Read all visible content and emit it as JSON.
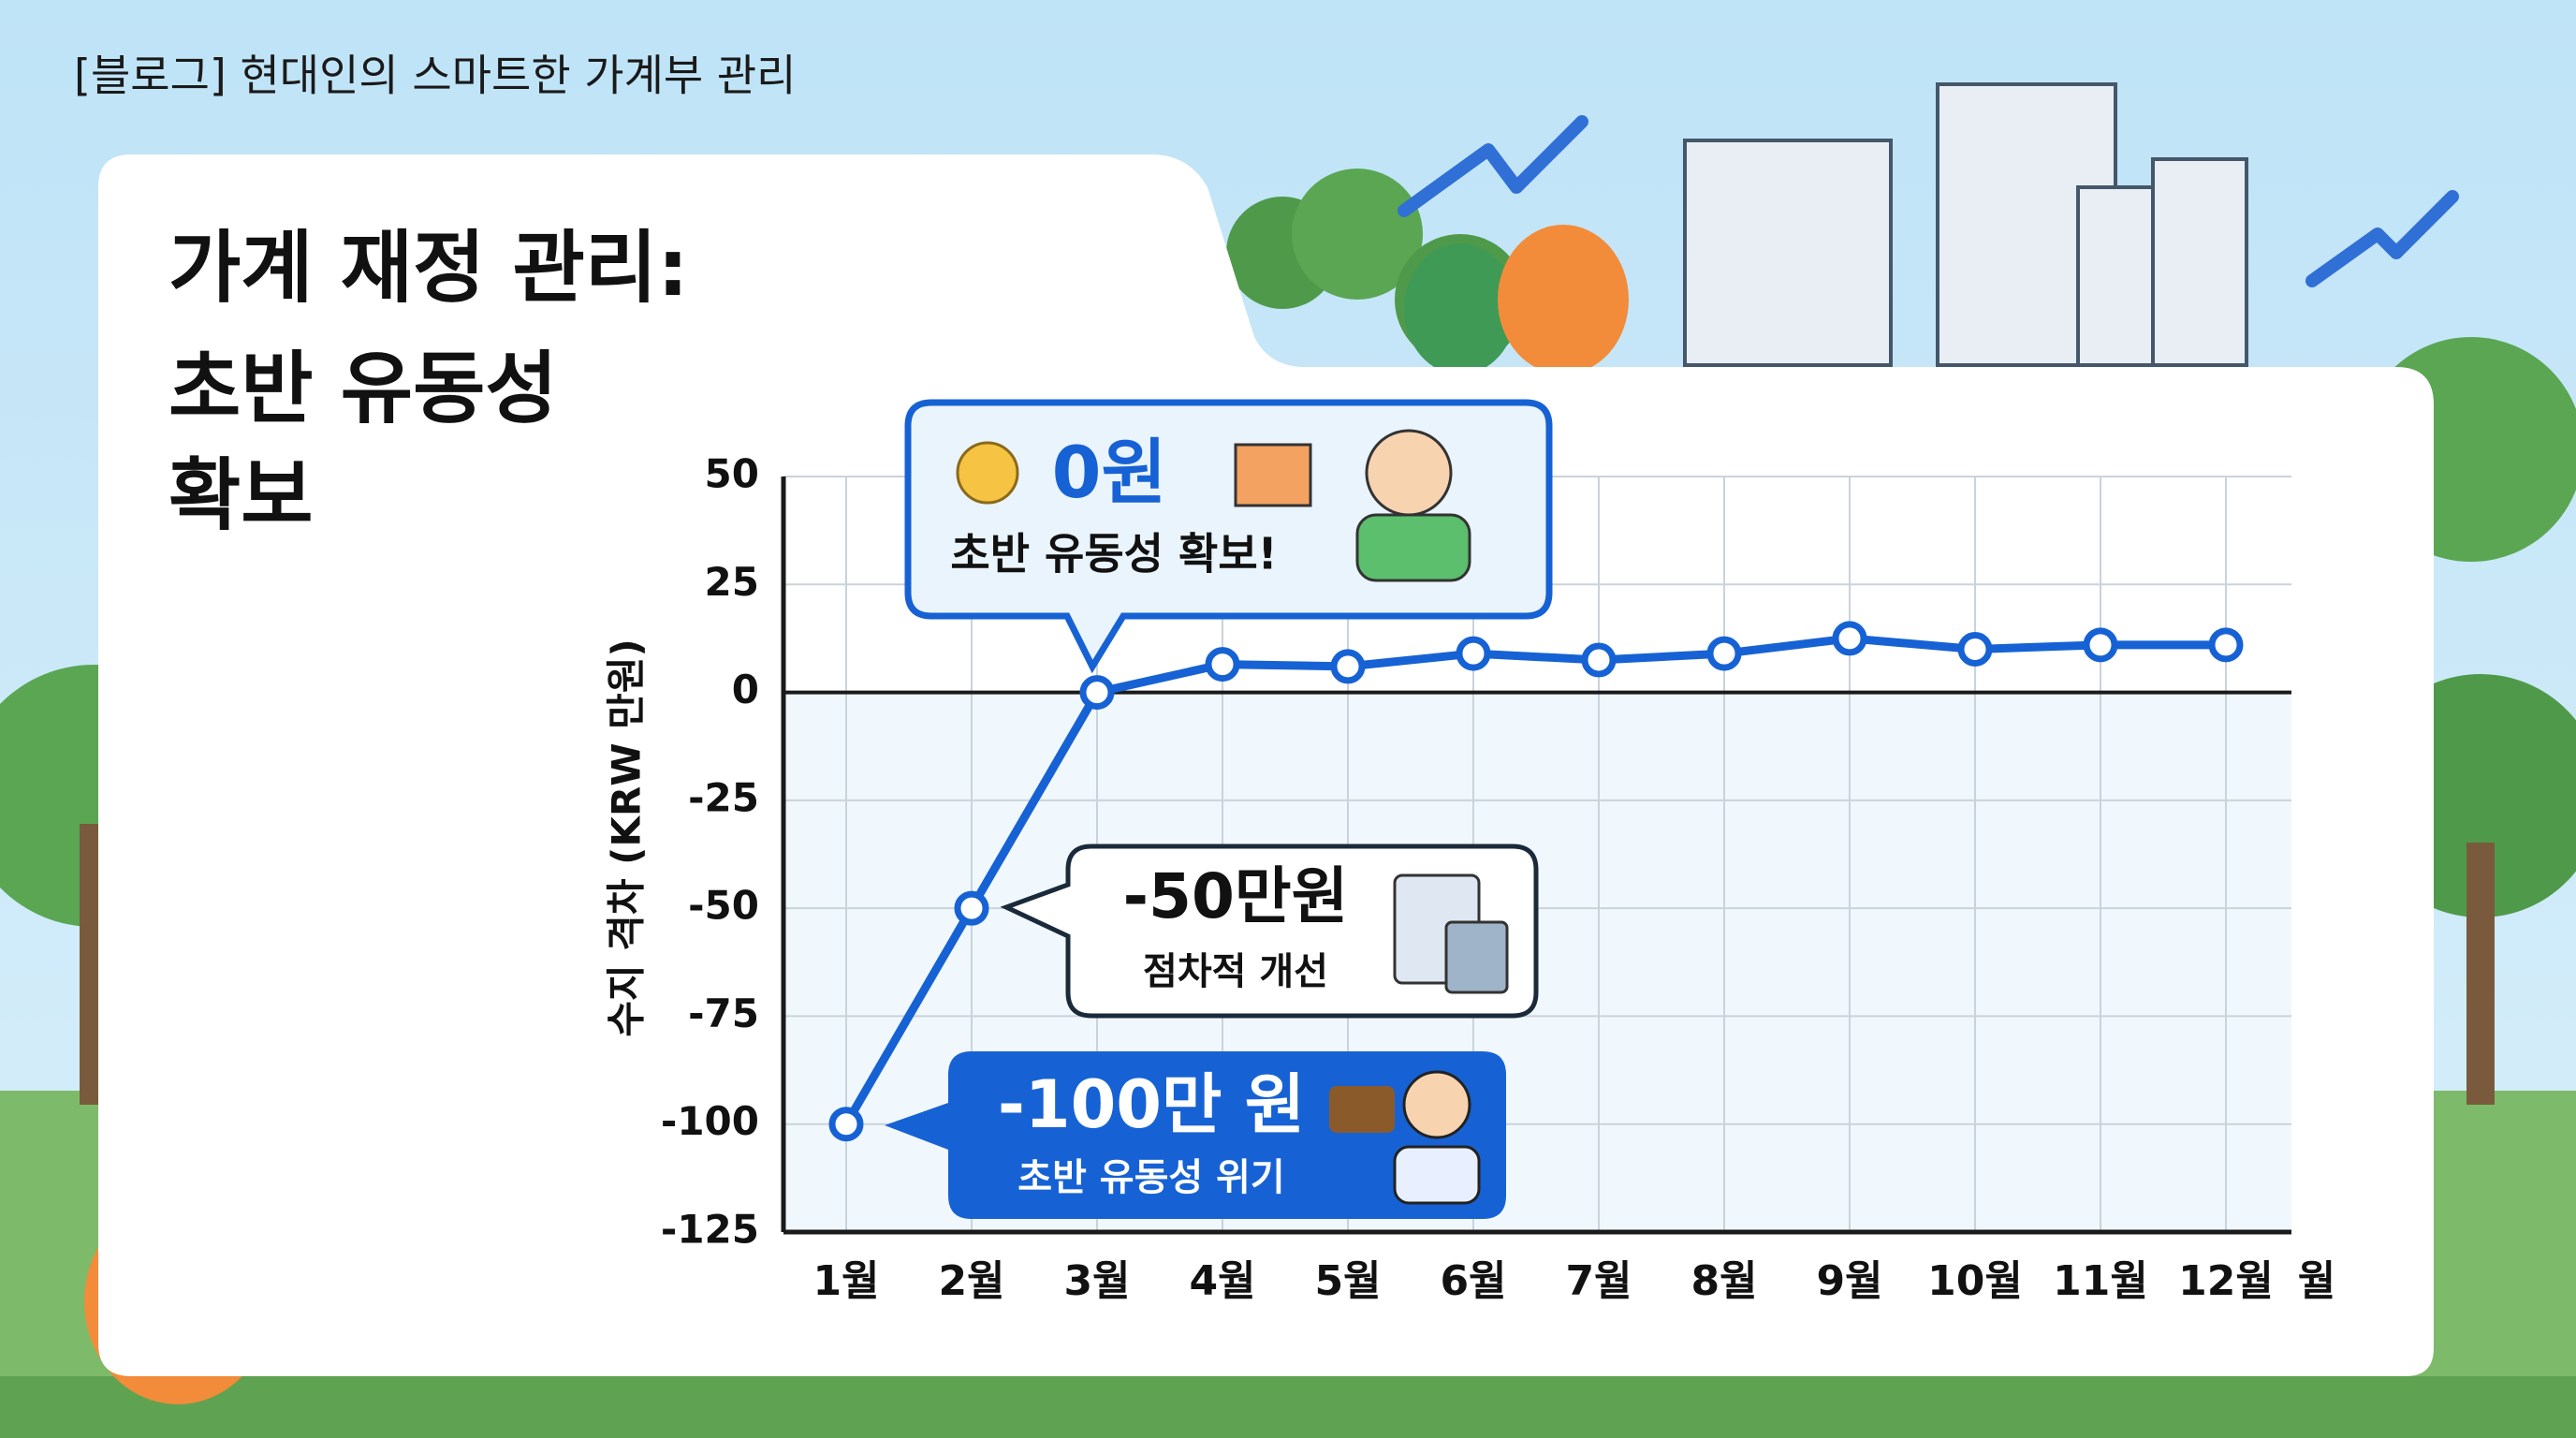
{
  "header": "[블로그] 현대인의 스마트한 가계부 관리",
  "chart_data": {
    "type": "line",
    "title": [
      "가계 재정 관리:",
      "초반 유동성",
      "확보"
    ],
    "y_label": "수지 격차 (KRW 만원)",
    "x_label": "월",
    "categories": [
      "1월",
      "2월",
      "3월",
      "4월",
      "5월",
      "6월",
      "7월",
      "8월",
      "9월",
      "10월",
      "11월",
      "12월"
    ],
    "values": [
      -100,
      -50,
      0,
      6.5,
      6,
      9,
      7.5,
      9,
      12.5,
      10,
      11,
      11
    ],
    "color": "#1662d4",
    "ylim": [
      -125,
      50
    ],
    "yticks": [
      -125,
      -100,
      -75,
      -50,
      -25,
      0,
      25,
      50
    ],
    "grid": true,
    "annotations": [
      {
        "label": "0원",
        "text": "초반 유동성 확보!"
      },
      {
        "label": "-50만원",
        "text": "점차적 개선"
      },
      {
        "label": "-100만 원",
        "text": "초반 유동성 위기"
      }
    ]
  }
}
